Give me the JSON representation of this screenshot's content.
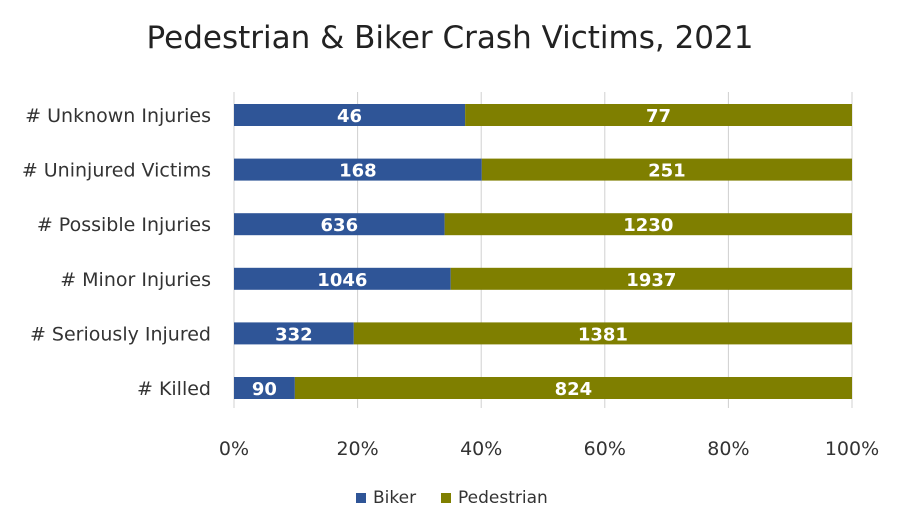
{
  "chart_data": {
    "type": "bar",
    "orientation": "horizontal",
    "stacking": "percent",
    "title": "Pedestrian & Biker Crash Victims, 2021",
    "categories": [
      "# Unknown Injuries",
      "# Uninjured Victims",
      "# Possible Injuries",
      "# Minor Injuries",
      "# Seriously Injured",
      "# Killed"
    ],
    "series": [
      {
        "name": "Biker",
        "color": "#2f5597",
        "values": [
          46,
          168,
          636,
          1046,
          332,
          90
        ]
      },
      {
        "name": "Pedestrian",
        "color": "#7f7f00",
        "values": [
          77,
          251,
          1230,
          1937,
          1381,
          824
        ]
      }
    ],
    "x_ticks": [
      "0%",
      "20%",
      "40%",
      "60%",
      "80%",
      "100%"
    ],
    "xlim": [
      0,
      100
    ],
    "grid": true,
    "legend": "bottom"
  }
}
